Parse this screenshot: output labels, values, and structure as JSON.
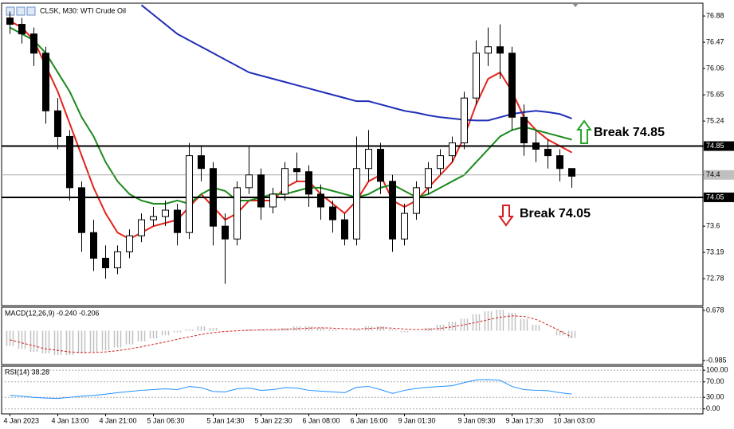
{
  "header": "CLSK, M30:  WTI Crude Oil",
  "chart_data": [
    {
      "type": "candlestick",
      "categories": [
        "4 Jan 2023",
        null,
        null,
        null,
        "4 Jan 13:00",
        null,
        null,
        null,
        "4 Jan 21:00",
        null,
        null,
        null,
        "5 Jan 06:30",
        null,
        null,
        null,
        null,
        "5 Jan 14:30",
        null,
        null,
        null,
        "5 Jan 22:30",
        null,
        null,
        null,
        "6 Jan 08:00",
        null,
        null,
        null,
        "6 Jan 16:00",
        null,
        null,
        null,
        "9 Jan 01:30",
        null,
        null,
        null,
        null,
        "9 Jan 09:30",
        null,
        null,
        null,
        "9 Jan 17:30",
        null,
        null,
        null,
        "10 Jan 03:00",
        null
      ],
      "open": [
        76.85,
        76.75,
        76.6,
        76.3,
        75.4,
        75.0,
        74.2,
        73.5,
        73.1,
        72.95,
        73.2,
        73.45,
        73.7,
        73.75,
        73.85,
        73.5,
        74.7,
        74.5,
        73.6,
        73.4,
        74.2,
        74.4,
        73.9,
        74.1,
        74.5,
        74.45,
        74.1,
        73.9,
        73.7,
        73.4,
        74.5,
        74.8,
        74.3,
        73.4,
        73.8,
        74.2,
        74.5,
        74.7,
        74.9,
        75.6,
        76.3,
        76.4,
        76.3,
        75.3,
        74.9,
        74.8,
        74.7,
        74.5
      ],
      "high": [
        76.95,
        76.85,
        76.7,
        76.4,
        75.6,
        75.1,
        74.3,
        73.7,
        73.3,
        73.3,
        73.55,
        73.8,
        73.9,
        74.0,
        73.95,
        74.9,
        74.85,
        74.6,
        73.8,
        74.3,
        74.85,
        74.5,
        74.2,
        74.6,
        74.75,
        74.55,
        74.25,
        74.0,
        73.8,
        75.0,
        75.1,
        74.9,
        74.4,
        73.95,
        74.3,
        74.6,
        74.8,
        75.0,
        75.7,
        76.5,
        76.7,
        76.75,
        76.4,
        75.5,
        75.1,
        74.95,
        74.8,
        74.5
      ],
      "low": [
        76.6,
        76.45,
        76.1,
        75.2,
        74.8,
        74.0,
        73.2,
        72.9,
        72.78,
        72.85,
        73.1,
        73.35,
        73.6,
        73.6,
        73.3,
        73.4,
        74.3,
        73.3,
        72.7,
        73.3,
        74.1,
        73.7,
        73.8,
        74.0,
        74.3,
        73.9,
        73.7,
        73.5,
        73.3,
        73.3,
        74.3,
        74.1,
        73.2,
        73.3,
        73.7,
        74.1,
        74.4,
        74.6,
        74.8,
        75.5,
        76.1,
        75.9,
        75.1,
        74.7,
        74.6,
        74.5,
        74.3,
        74.2
      ],
      "close": [
        76.75,
        76.6,
        76.3,
        75.4,
        75.0,
        74.2,
        73.5,
        73.1,
        72.95,
        73.2,
        73.45,
        73.7,
        73.75,
        73.85,
        73.5,
        74.7,
        74.5,
        73.6,
        73.4,
        74.2,
        74.4,
        73.9,
        74.1,
        74.5,
        74.45,
        74.1,
        73.9,
        73.7,
        73.4,
        74.5,
        74.8,
        74.3,
        73.4,
        73.8,
        74.2,
        74.5,
        74.7,
        74.9,
        75.6,
        76.3,
        76.4,
        76.3,
        75.3,
        74.9,
        74.8,
        74.7,
        74.5,
        74.38
      ],
      "overlays": [
        {
          "color": "#e3231b",
          "values": [
            76.8,
            76.7,
            76.5,
            76.1,
            75.7,
            75.2,
            74.7,
            74.2,
            73.8,
            73.5,
            73.4,
            73.5,
            73.6,
            73.65,
            73.7,
            73.9,
            74.1,
            73.9,
            73.7,
            73.8,
            74.0,
            74.0,
            74.0,
            74.2,
            74.3,
            74.3,
            74.1,
            73.95,
            73.8,
            74.0,
            74.3,
            74.4,
            74.0,
            73.9,
            74.0,
            74.2,
            74.4,
            74.6,
            75.0,
            75.5,
            75.9,
            76.0,
            75.7,
            75.3,
            75.1,
            74.95,
            74.85,
            74.75
          ]
        },
        {
          "color": "#1c8a1c",
          "values": [
            76.7,
            76.6,
            76.5,
            76.3,
            76.0,
            75.7,
            75.3,
            75.0,
            74.6,
            74.3,
            74.1,
            74.0,
            73.95,
            73.95,
            74.0,
            73.95,
            74.1,
            74.2,
            74.15,
            74.0,
            74.0,
            74.05,
            74.1,
            74.1,
            74.15,
            74.2,
            74.2,
            74.15,
            74.1,
            74.05,
            74.1,
            74.2,
            74.25,
            74.15,
            74.05,
            74.1,
            74.2,
            74.3,
            74.4,
            74.6,
            74.8,
            75.0,
            75.1,
            75.15,
            75.1,
            75.05,
            75.0,
            74.95
          ]
        },
        {
          "color": "#1f2fb8",
          "values": [
            null,
            null,
            null,
            null,
            null,
            null,
            null,
            null,
            null,
            null,
            null,
            77.05,
            76.9,
            76.75,
            76.6,
            76.5,
            76.4,
            76.3,
            76.2,
            76.1,
            76.0,
            75.95,
            75.9,
            75.85,
            75.8,
            75.75,
            75.7,
            75.65,
            75.6,
            75.55,
            75.55,
            75.5,
            75.45,
            75.4,
            75.37,
            75.33,
            75.3,
            75.28,
            75.26,
            75.25,
            75.25,
            75.3,
            75.35,
            75.38,
            75.4,
            75.38,
            75.35,
            75.28
          ]
        }
      ],
      "ylim": [
        72.36,
        77.08
      ],
      "yticks": [
        76.88,
        76.47,
        76.06,
        75.65,
        75.24,
        74.85,
        74.4,
        74.05,
        73.6,
        73.19,
        72.78
      ],
      "levels": [
        {
          "value": 74.85,
          "label": "Break 74.85"
        },
        {
          "value": 74.05,
          "label": "Break 74.05"
        }
      ],
      "last_price": 74.4
    },
    {
      "type": "macd",
      "title": "MACD(12,26,9) -0.240 -0.206",
      "values": [
        -0.5,
        -0.6,
        -0.7,
        -0.75,
        -0.8,
        -0.8,
        -0.75,
        -0.7,
        -0.65,
        -0.55,
        -0.45,
        -0.35,
        -0.25,
        -0.15,
        -0.05,
        0.05,
        0.15,
        0.1,
        0.0,
        0.0,
        0.05,
        0.05,
        0.05,
        0.1,
        0.15,
        0.15,
        0.1,
        0.05,
        0.0,
        0.05,
        0.15,
        0.15,
        0.05,
        -0.05,
        0.0,
        0.1,
        0.2,
        0.3,
        0.4,
        0.55,
        0.65,
        0.7,
        0.6,
        0.4,
        0.2,
        0.0,
        -0.15,
        -0.24
      ],
      "color": "#c0c0c0",
      "signal": {
        "color": "#d02020",
        "values": [
          -0.3,
          -0.4,
          -0.5,
          -0.6,
          -0.65,
          -0.7,
          -0.72,
          -0.72,
          -0.7,
          -0.66,
          -0.6,
          -0.53,
          -0.45,
          -0.37,
          -0.28,
          -0.2,
          -0.12,
          -0.06,
          -0.02,
          0.0,
          0.02,
          0.03,
          0.04,
          0.05,
          0.07,
          0.09,
          0.1,
          0.09,
          0.07,
          0.06,
          0.08,
          0.1,
          0.09,
          0.06,
          0.04,
          0.05,
          0.08,
          0.13,
          0.2,
          0.28,
          0.37,
          0.45,
          0.5,
          0.48,
          0.38,
          0.2,
          0.0,
          -0.206
        ]
      },
      "ylim": [
        -1.12,
        0.785
      ],
      "yticks": [
        0.678,
        -0.985
      ],
      "grid": false
    },
    {
      "type": "line",
      "title": "RSI(14) 38.28",
      "values": [
        35,
        33,
        30,
        28,
        27,
        30,
        33,
        35,
        38,
        42,
        45,
        48,
        50,
        52,
        50,
        58,
        55,
        45,
        44,
        52,
        54,
        48,
        50,
        55,
        54,
        48,
        46,
        44,
        42,
        56,
        58,
        50,
        40,
        48,
        53,
        56,
        58,
        60,
        68,
        75,
        76,
        74,
        58,
        50,
        48,
        47,
        42,
        38.28
      ],
      "color": "#1e90ff",
      "ylim": [
        -12.8,
        110.6
      ],
      "yticks": [
        {
          "value": 100,
          "label": "100.00"
        },
        {
          "value": 70,
          "label": "70.00"
        },
        {
          "value": 30,
          "label": "30.00"
        },
        {
          "value": 0,
          "label": "0.00"
        }
      ],
      "grid": true
    }
  ]
}
